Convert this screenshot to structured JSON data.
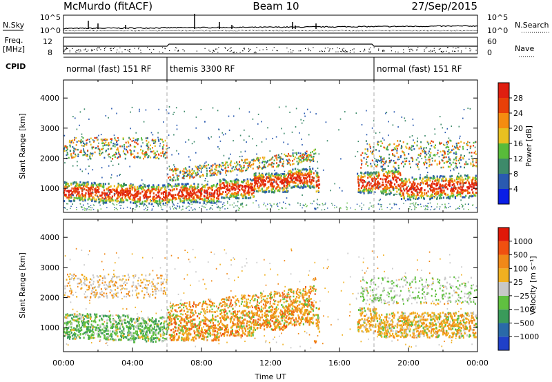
{
  "header": {
    "station": "McMurdo (fitACF)",
    "beam": "Beam 10",
    "date": "27/Sep/2015"
  },
  "labels": {
    "nsky": "N.Sky",
    "nsearch": "N.Search",
    "freq": "Freq.",
    "freq_unit": "[MHz]",
    "nave": "Nave",
    "cpid": "CPID"
  },
  "chart_data": [
    {
      "type": "line",
      "name": "noise-panel",
      "y_left_label": "N.Sky",
      "y_right_label": "N.Search",
      "y_left_ticks": [
        "10^5",
        "10^0"
      ],
      "y_right_ticks": [
        "10^5",
        "10^0"
      ],
      "ylim": [
        0,
        5
      ],
      "xlim": [
        0,
        24
      ]
    },
    {
      "type": "line",
      "name": "frequency-panel",
      "y_left_ticks": [
        "12",
        "8"
      ],
      "y_right_ticks": [
        "60",
        "0"
      ],
      "xlim": [
        0,
        24
      ]
    },
    {
      "type": "table",
      "name": "cpid-strip",
      "segments": [
        {
          "label": "normal (fast) 151 RF",
          "start": 0,
          "end": 6
        },
        {
          "label": "themis 3300 RF",
          "start": 6,
          "end": 18
        },
        {
          "label": "normal (fast) 151 RF",
          "start": 18,
          "end": 24
        }
      ]
    },
    {
      "type": "heatmap",
      "name": "power",
      "ylabel": "Slant Range [km]",
      "xlabel": "",
      "ylim": [
        200,
        4600
      ],
      "xlim": [
        0,
        24
      ],
      "yticks": [
        1000,
        2000,
        3000,
        4000
      ],
      "colorbar": {
        "label": "Power [dB]",
        "ticks": [
          "4",
          "8",
          "12",
          "16",
          "20",
          "24",
          "28"
        ],
        "colors": [
          "#0a1ee6",
          "#2a5ab0",
          "#3d8a6a",
          "#58bb3a",
          "#e8c020",
          "#f58c10",
          "#e84008",
          "#e01e10"
        ]
      }
    },
    {
      "type": "heatmap",
      "name": "velocity",
      "ylabel": "Slant Range [km]",
      "xlabel": "Time UT",
      "ylim": [
        200,
        4600
      ],
      "xlim": [
        0,
        24
      ],
      "yticks": [
        1000,
        2000,
        3000,
        4000
      ],
      "xticks": [
        "00:00",
        "04:00",
        "08:00",
        "12:00",
        "16:00",
        "20:00",
        "00:00"
      ],
      "colorbar": {
        "label": "Velocity [m s⁻¹]",
        "ticks": [
          "1000",
          "500",
          "100",
          "25",
          "−25",
          "−100",
          "−500",
          "−1000"
        ],
        "colors": [
          "#2040c8",
          "#2a6aa8",
          "#3a9a5a",
          "#60c040",
          "#c8c8c8",
          "#f0b020",
          "#f08818",
          "#f05010",
          "#e01808"
        ]
      }
    }
  ]
}
